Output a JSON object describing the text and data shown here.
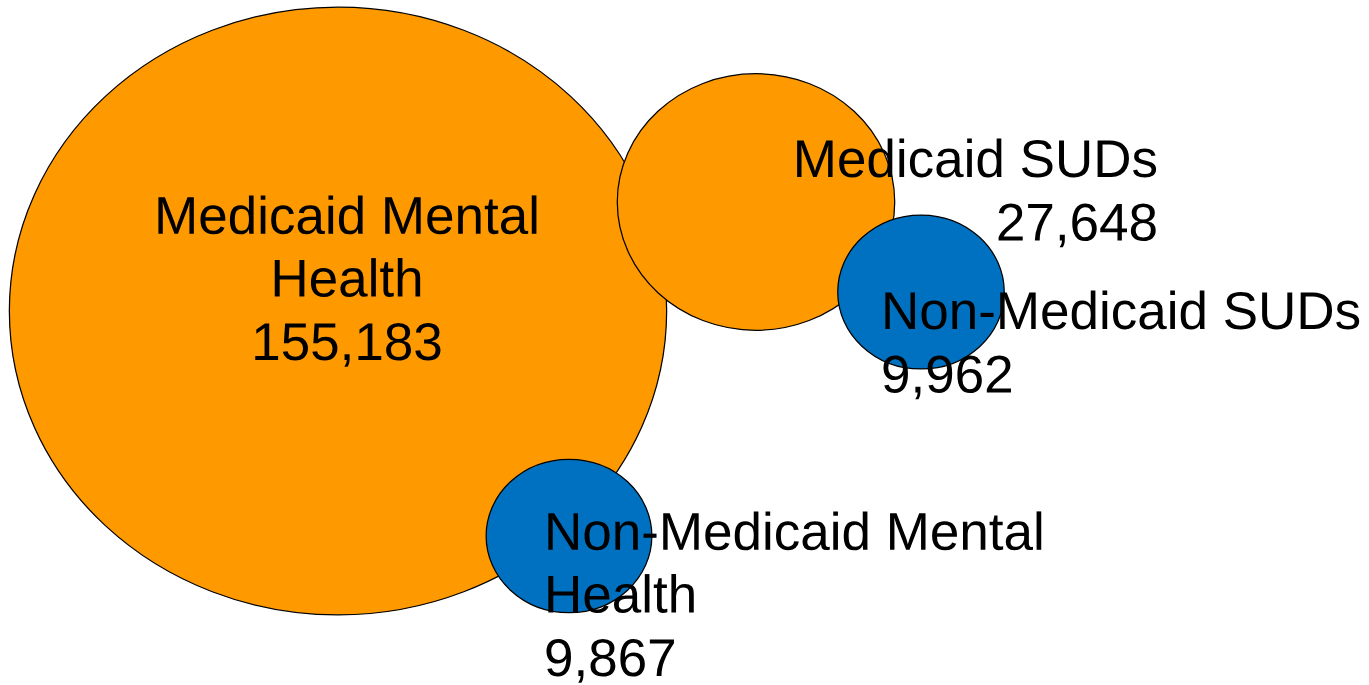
{
  "chart_data": {
    "type": "other",
    "categories": [
      "Medicaid Mental\nHealth",
      "Medicaid SUDs",
      "Non-Medicaid SUDs",
      "Non-Medicaid Mental\nHealth"
    ],
    "values": [
      155183,
      27648,
      9962,
      9867
    ],
    "value_labels": [
      "155,183",
      "27,648",
      "9,962",
      "9,867"
    ],
    "colors": [
      "#ff9900",
      "#ff9900",
      "#0070c0",
      "#0070c0"
    ]
  }
}
